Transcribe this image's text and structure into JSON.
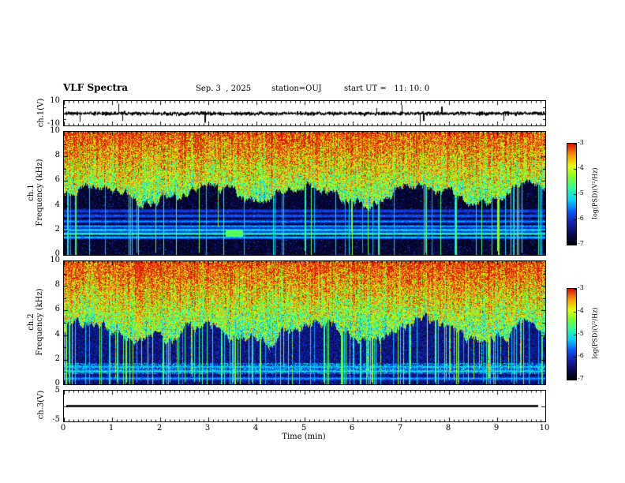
{
  "header": {
    "title": "VLF Spectra",
    "date": "Sep. 3  , 2025",
    "station": "station=OUJ",
    "start_ut": "start UT =   11: 10: 0"
  },
  "xaxis": {
    "label": "Time (min)",
    "range": [
      0,
      10
    ],
    "ticks": [
      "0",
      "1",
      "2",
      "3",
      "4",
      "5",
      "6",
      "7",
      "8",
      "9",
      "10"
    ]
  },
  "chart_data": [
    {
      "id": "ch1_voltage",
      "type": "line",
      "ylabel": "ch.1(V)",
      "ylim": [
        -10,
        10
      ],
      "yticks": [
        "10",
        "-10"
      ],
      "x_range": [
        0,
        10
      ],
      "signal_summary": "broadband noise centered on 0 V, mostly within ±2 V, with sporadic impulsive spikes reaching about ±8 V"
    },
    {
      "id": "ch1_spectrogram",
      "type": "heatmap",
      "ylabel_line1": "ch.1",
      "ylabel_line2": "Frequency (kHz)",
      "ylim": [
        0,
        10
      ],
      "yticks": [
        "10",
        "8",
        "6",
        "4",
        "2",
        "0"
      ],
      "x_range": [
        0,
        10
      ],
      "value_range": [
        -7,
        -3
      ],
      "colorbar_label": "log(PSD)(V²/Hz)",
      "colorbar_ticks": [
        "-3",
        "-4",
        "-5",
        "-6",
        "-7"
      ],
      "features": {
        "broadband_hiss_above_kHz": 4.5,
        "hiss_level_logPSD": [
          -5,
          -3
        ],
        "dark_floor_logPSD": [
          -7,
          -6.5
        ],
        "narrowband_lines_kHz": [
          1.45,
          1.75,
          2.05,
          2.35,
          2.75,
          3.2,
          3.6
        ],
        "impulsive_vertical_streaks": "frequent full-band cyan streaks, most visible below 4 kHz",
        "hook_emission": {
          "time_min": 3.5,
          "freq_kHz": 1.8
        }
      }
    },
    {
      "id": "ch2_spectrogram",
      "type": "heatmap",
      "ylabel_line1": "ch.2",
      "ylabel_line2": "Frequency (kHz)",
      "ylim": [
        0,
        10
      ],
      "yticks": [
        "10",
        "8",
        "6",
        "4",
        "2",
        "0"
      ],
      "x_range": [
        0,
        10
      ],
      "value_range": [
        -7,
        -3
      ],
      "colorbar_label": "log(PSD)(V²/Hz)",
      "colorbar_ticks": [
        "-3",
        "-4",
        "-5",
        "-6",
        "-7"
      ],
      "features": {
        "broadband_hiss_above_kHz": 4.0,
        "hiss_level_logPSD": [
          -5,
          -3
        ],
        "mid_band_floor_logPSD": [
          -6.7,
          -6.0
        ],
        "narrowband_lines_kHz": [
          0.5,
          1.1,
          1.45
        ],
        "cyan_band_kHz": [
          0.85,
          1.7
        ],
        "impulsive_vertical_streaks": "more frequent than ch.1, many green columns reaching 0 kHz"
      }
    },
    {
      "id": "ch3_voltage",
      "type": "line",
      "ylabel": "ch.3(V)",
      "ylim": [
        -5,
        5
      ],
      "yticks": [
        "5",
        "-5"
      ],
      "x_range": [
        0,
        10
      ],
      "signal_summary": "constant flat line at 0 V"
    }
  ],
  "colormap": {
    "vmin": -7,
    "vmax": -3,
    "stops": [
      "#000000",
      "#0a0a5a",
      "#1420b4",
      "#005aff",
      "#00d2ff",
      "#28ffa0",
      "#78ff28",
      "#e6ff00",
      "#ff9600",
      "#dc1400"
    ]
  }
}
